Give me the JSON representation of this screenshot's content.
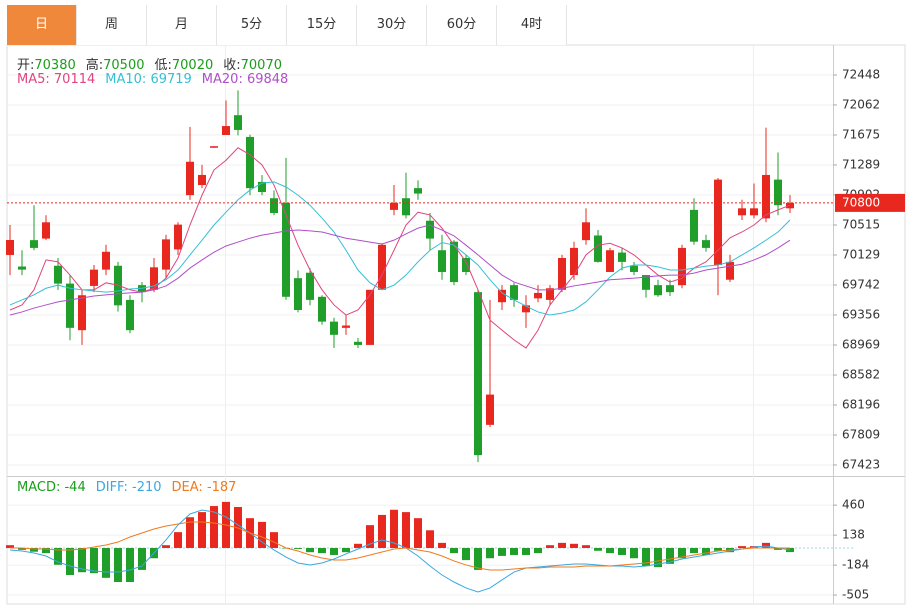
{
  "tabs": [
    {
      "label": "日",
      "active": true
    },
    {
      "label": "周"
    },
    {
      "label": "月"
    },
    {
      "label": "5分"
    },
    {
      "label": "15分"
    },
    {
      "label": "30分"
    },
    {
      "label": "60分"
    },
    {
      "label": "4时"
    }
  ],
  "chart_data": [
    {
      "type": "candlestick",
      "up_color": "#e8281e",
      "down_color": "#1f9e2a",
      "value_color": "#1a9e1a",
      "readout": [
        {
          "label": "开:",
          "value": 70380
        },
        {
          "label": "高:",
          "value": 70500
        },
        {
          "label": "低:",
          "value": 70020
        },
        {
          "label": "收:",
          "value": 70070
        }
      ],
      "ylim": [
        67281,
        72770
      ],
      "yticks": [
        72448,
        72062,
        71675,
        71289,
        70902,
        70515,
        70129,
        69742,
        69356,
        68969,
        68582,
        68196,
        67809,
        67423
      ],
      "grid": true,
      "last_price": 70800,
      "last_price_color": "#e8281e",
      "open": [
        70129,
        69980,
        70320,
        70340,
        69990,
        69760,
        69160,
        69730,
        69940,
        69990,
        69550,
        69740,
        69680,
        69940,
        70200,
        70900,
        71030,
        71510,
        71675,
        71930,
        71650,
        71070,
        70860,
        70800,
        69830,
        69900,
        69590,
        69270,
        69190,
        69010,
        68970,
        69680,
        70710,
        70860,
        70990,
        70570,
        70190,
        70300,
        70090,
        69650,
        67940,
        69520,
        69740,
        69390,
        69570,
        69550,
        69680,
        69870,
        70320,
        70380,
        69910,
        70160,
        69990,
        69870,
        69740,
        69740,
        69740,
        70710,
        70320,
        70000,
        69810,
        70640,
        70640,
        70600,
        71100,
        70730
      ],
      "high": [
        70515,
        70190,
        70770,
        70640,
        70090,
        69870,
        69680,
        70000,
        70260,
        70040,
        69610,
        69780,
        70090,
        70390,
        70550,
        71780,
        71290,
        71530,
        72120,
        72250,
        71680,
        71160,
        70960,
        71380,
        69930,
        69960,
        69610,
        69320,
        69360,
        69060,
        69680,
        70280,
        71030,
        71190,
        71090,
        70670,
        70390,
        70320,
        70130,
        69680,
        69550,
        69740,
        69770,
        69610,
        69740,
        69740,
        70130,
        70300,
        70730,
        70450,
        70220,
        70220,
        70040,
        69870,
        69810,
        69810,
        70260,
        70860,
        70390,
        71120,
        70130,
        70840,
        71050,
        71770,
        71450,
        70900
      ],
      "low": [
        69870,
        69870,
        70190,
        70320,
        69680,
        69030,
        68970,
        69650,
        69870,
        69400,
        69120,
        69520,
        69650,
        69830,
        70130,
        70840,
        70990,
        71510,
        71675,
        71670,
        70900,
        70900,
        70640,
        69550,
        69390,
        69480,
        69230,
        68930,
        69100,
        68930,
        68970,
        69680,
        70640,
        70600,
        70840,
        70190,
        69810,
        69740,
        69870,
        67460,
        67910,
        69420,
        69460,
        69190,
        69520,
        69480,
        69650,
        69810,
        70260,
        70030,
        69910,
        69930,
        69870,
        69580,
        69590,
        69600,
        69700,
        70260,
        70170,
        69610,
        69780,
        70580,
        70600,
        70550,
        70640,
        70670
      ],
      "close": [
        70322,
        69940,
        70220,
        70550,
        69760,
        69190,
        69610,
        69940,
        70170,
        69480,
        69160,
        69650,
        69970,
        70330,
        70520,
        71330,
        71160,
        71530,
        71790,
        71740,
        70990,
        70940,
        70670,
        69590,
        69420,
        69550,
        69270,
        69100,
        69220,
        68970,
        69680,
        70260,
        70800,
        70640,
        70920,
        70340,
        69910,
        69780,
        69910,
        67550,
        68330,
        69680,
        69550,
        69480,
        69640,
        69700,
        70090,
        70220,
        70550,
        70040,
        70190,
        70040,
        69910,
        69680,
        69610,
        69650,
        70220,
        70300,
        70220,
        71100,
        70040,
        70730,
        70730,
        71160,
        70770,
        70800
      ],
      "series": [
        {
          "label": "MA5: ",
          "current": 70114,
          "color": "#e0457f",
          "values": [
            69420,
            69485,
            69680,
            70065,
            70040,
            69870,
            69680,
            69680,
            69770,
            69740,
            69680,
            69650,
            69700,
            69830,
            70090,
            70515,
            70900,
            71225,
            71350,
            71510,
            71420,
            71290,
            71030,
            70645,
            70255,
            69935,
            69680,
            69485,
            69355,
            69420,
            69615,
            69870,
            70190,
            70515,
            70680,
            70645,
            70475,
            70255,
            70040,
            69680,
            69290,
            69160,
            69035,
            68930,
            69160,
            69485,
            69680,
            69870,
            70130,
            70255,
            70280,
            70220,
            70130,
            70000,
            69870,
            69780,
            69830,
            69960,
            70040,
            70190,
            70350,
            70425,
            70515,
            70645,
            70710,
            70770
          ]
        },
        {
          "label": "MA10: ",
          "current": 69719,
          "color": "#35bfd6",
          "values": [
            69485,
            69550,
            69615,
            69700,
            69740,
            69700,
            69680,
            69665,
            69650,
            69665,
            69690,
            69700,
            69730,
            69810,
            69935,
            70130,
            70320,
            70515,
            70680,
            70840,
            70965,
            71055,
            71070,
            71005,
            70900,
            70770,
            70605,
            70425,
            70190,
            69935,
            69770,
            69680,
            69740,
            69870,
            70040,
            70190,
            70290,
            70255,
            70130,
            70000,
            69810,
            69640,
            69550,
            69470,
            69395,
            69355,
            69380,
            69420,
            69525,
            69680,
            69845,
            69960,
            70000,
            70000,
            69975,
            69935,
            69935,
            69960,
            69985,
            70000,
            70040,
            70130,
            70220,
            70320,
            70425,
            70580
          ]
        },
        {
          "label": "MA20: ",
          "current": 69848,
          "color": "#b04fc9",
          "values": [
            69355,
            69395,
            69445,
            69485,
            69525,
            69550,
            69575,
            69600,
            69615,
            69630,
            69640,
            69650,
            69680,
            69730,
            69830,
            69960,
            70065,
            70165,
            70245,
            70295,
            70345,
            70385,
            70410,
            70440,
            70450,
            70440,
            70425,
            70385,
            70345,
            70320,
            70295,
            70270,
            70320,
            70400,
            70475,
            70515,
            70450,
            70375,
            70255,
            70130,
            70000,
            69870,
            69780,
            69730,
            69680,
            69680,
            69700,
            69730,
            69755,
            69780,
            69810,
            69820,
            69830,
            69845,
            69860,
            69870,
            69870,
            69895,
            69935,
            69960,
            69985,
            70010,
            70065,
            70130,
            70220,
            70320
          ]
        }
      ]
    },
    {
      "type": "macd",
      "up_color": "#e8281e",
      "down_color": "#1f9e2a",
      "ylim": [
        -601,
        751
      ],
      "yticks": [
        460,
        138,
        -184,
        -505
      ],
      "series": [
        {
          "label": "MACD: ",
          "current": -44,
          "color": "#1a9e1a",
          "values": [
            30,
            -20,
            -40,
            -55,
            -180,
            -290,
            -260,
            -270,
            -320,
            -365,
            -365,
            -235,
            -110,
            30,
            170,
            330,
            385,
            450,
            495,
            440,
            320,
            280,
            170,
            -5,
            -10,
            -45,
            -55,
            -75,
            -45,
            45,
            245,
            355,
            410,
            385,
            320,
            190,
            55,
            -55,
            -130,
            -235,
            -110,
            -85,
            -75,
            -75,
            -55,
            30,
            55,
            45,
            30,
            -30,
            -55,
            -75,
            -110,
            -195,
            -205,
            -170,
            -110,
            -55,
            -75,
            -30,
            -45,
            20,
            20,
            55,
            -20,
            -44
          ]
        },
        {
          "label": "DIFF: ",
          "current": -210,
          "color": "#3aa8e0",
          "values": [
            -21,
            -32,
            -54,
            -86,
            -150,
            -193,
            -225,
            -247,
            -258,
            -258,
            -236,
            -193,
            -54,
            86,
            247,
            365,
            408,
            386,
            333,
            247,
            161,
            64,
            -21,
            -97,
            -161,
            -182,
            -161,
            -118,
            -64,
            -11,
            43,
            86,
            54,
            0,
            -86,
            -193,
            -290,
            -365,
            -429,
            -472,
            -429,
            -343,
            -258,
            -215,
            -204,
            -193,
            -182,
            -172,
            -172,
            -182,
            -193,
            -193,
            -204,
            -193,
            -172,
            -150,
            -118,
            -97,
            -75,
            -54,
            -32,
            -11,
            11,
            21,
            0,
            -21
          ]
        },
        {
          "label": "DEA: ",
          "current": -187,
          "color": "#f07a1e",
          "values": [
            0,
            0,
            -11,
            -11,
            -21,
            -21,
            -11,
            11,
            32,
            64,
            118,
            161,
            204,
            236,
            258,
            279,
            279,
            268,
            247,
            215,
            161,
            118,
            64,
            0,
            -32,
            -75,
            -107,
            -129,
            -129,
            -107,
            -75,
            -43,
            -11,
            0,
            -21,
            -43,
            -86,
            -139,
            -182,
            -215,
            -236,
            -236,
            -225,
            -215,
            -215,
            -204,
            -204,
            -204,
            -193,
            -193,
            -193,
            -182,
            -172,
            -161,
            -139,
            -118,
            -97,
            -75,
            -54,
            -32,
            -21,
            -11,
            0,
            0,
            0,
            0
          ]
        }
      ]
    }
  ]
}
